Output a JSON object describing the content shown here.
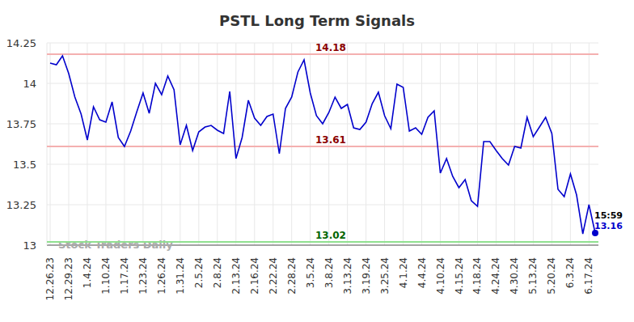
{
  "chart_data": {
    "type": "line",
    "title": "PSTL Long Term Signals",
    "categories": [
      "12.26.23",
      null,
      null,
      "12.29.23",
      null,
      null,
      "1.4.24",
      null,
      null,
      "1.10.24",
      null,
      null,
      "1.17.24",
      null,
      null,
      "1.23.24",
      null,
      null,
      "1.26.24",
      null,
      null,
      "1.31.24",
      null,
      null,
      "2.5.24",
      null,
      null,
      "2.8.24",
      null,
      null,
      "2.13.24",
      null,
      null,
      "2.16.24",
      null,
      null,
      "2.22.24",
      null,
      null,
      "2.28.24",
      null,
      null,
      "3.5.24",
      null,
      null,
      "3.8.24",
      null,
      null,
      "3.13.24",
      null,
      null,
      "3.19.24",
      null,
      null,
      "3.25.24",
      null,
      null,
      "4.1.24",
      null,
      null,
      "4.4.24",
      null,
      null,
      "4.10.24",
      null,
      null,
      "4.15.24",
      null,
      null,
      "4.18.24",
      null,
      null,
      "4.24.24",
      null,
      null,
      "4.30.24",
      null,
      null,
      "5.13.24",
      null,
      null,
      "5.20.24",
      null,
      null,
      "6.3.24",
      null,
      null,
      "6.17.24",
      null
    ],
    "series": [
      {
        "name": "PSTL",
        "color": "#0000cc",
        "values": [
          14.125,
          14.115,
          14.17,
          14.06,
          13.915,
          13.81,
          13.65,
          13.855,
          13.775,
          13.76,
          13.885,
          13.665,
          13.61,
          13.705,
          13.825,
          13.94,
          13.815,
          14.0,
          13.93,
          14.045,
          13.96,
          13.62,
          13.74,
          13.585,
          13.7,
          13.73,
          13.74,
          13.71,
          13.69,
          13.95,
          13.535,
          13.665,
          13.895,
          13.785,
          13.74,
          13.795,
          13.81,
          13.565,
          13.845,
          13.915,
          14.07,
          14.145,
          13.94,
          13.8,
          13.75,
          13.82,
          13.915,
          13.845,
          13.87,
          13.725,
          13.715,
          13.76,
          13.875,
          13.945,
          13.8,
          13.72,
          13.995,
          13.975,
          13.705,
          13.725,
          13.685,
          13.79,
          13.83,
          13.445,
          13.535,
          13.425,
          13.355,
          13.405,
          13.275,
          13.24,
          13.64,
          13.64,
          13.585,
          13.535,
          13.495,
          13.61,
          13.6,
          13.79,
          13.67,
          13.73,
          13.79,
          13.69,
          13.345,
          13.3,
          13.44,
          13.31,
          13.07,
          13.25,
          13.075
        ]
      }
    ],
    "ylim": [
      13,
      14.25
    ],
    "yticks": [
      13,
      13.25,
      13.5,
      13.75,
      14,
      14.25
    ],
    "grid": true,
    "annotations": [
      {
        "text": "14.18",
        "value": 14.18,
        "color": "#8b0000"
      },
      {
        "text": "13.61",
        "value": 13.61,
        "color": "#8b0000"
      },
      {
        "text": "13.02",
        "value": 13.02,
        "color": "#006400"
      }
    ],
    "last_label": {
      "time": "15:59",
      "text": "13.16"
    },
    "watermark": "Stock Traders Daily"
  }
}
